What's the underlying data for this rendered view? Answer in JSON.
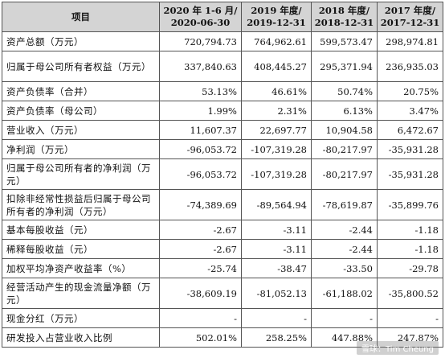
{
  "table": {
    "headers": [
      {
        "line1": "项目",
        "line2": ""
      },
      {
        "line1": "2020 年 1-6 月/",
        "line2": "2020-06-30"
      },
      {
        "line1": "2019 年度/",
        "line2": "2019-12-31"
      },
      {
        "line1": "2018 年度/",
        "line2": "2018-12-31"
      },
      {
        "line1": "2017 年度/",
        "line2": "2017-12-31"
      }
    ],
    "rows": [
      {
        "label": "资产总额（万元）",
        "values": [
          "720,794.73",
          "764,962.61",
          "599,573.47",
          "298,974.81"
        ]
      },
      {
        "label": "归属于母公司所有者权益（万元）",
        "values": [
          "337,840.63",
          "408,445.27",
          "295,371.94",
          "236,935.03"
        ]
      },
      {
        "label": "资产负债率（合并）",
        "values": [
          "53.13%",
          "46.61%",
          "50.74%",
          "20.75%"
        ]
      },
      {
        "label": "资产负债率（母公司）",
        "values": [
          "1.99%",
          "2.31%",
          "6.13%",
          "3.47%"
        ]
      },
      {
        "label": "营业收入（万元）",
        "values": [
          "11,607.37",
          "22,697.77",
          "10,904.58",
          "6,472.67"
        ]
      },
      {
        "label": "净利润（万元）",
        "values": [
          "-96,053.72",
          "-107,319.28",
          "-80,217.97",
          "-35,931.28"
        ]
      },
      {
        "label": "归属于母公司所有者的净利润（万元）",
        "values": [
          "-96,053.72",
          "-107,319.28",
          "-80,217.97",
          "-35,931.28"
        ]
      },
      {
        "label": "扣除非经常性损益后归属于母公司所有者的净利润（万元）",
        "values": [
          "-74,389.69",
          "-89,564.94",
          "-78,619.87",
          "-35,899.76"
        ]
      },
      {
        "label": "基本每股收益（元）",
        "values": [
          "-2.67",
          "-3.11",
          "-2.44",
          "-1.18"
        ]
      },
      {
        "label": "稀释每股收益（元）",
        "values": [
          "-2.67",
          "-3.11",
          "-2.44",
          "-1.18"
        ]
      },
      {
        "label": "加权平均净资产收益率（%）",
        "values": [
          "-25.74",
          "-38.47",
          "-33.50",
          "-29.78"
        ]
      },
      {
        "label": "经营活动产生的现金流量净额（万元）",
        "values": [
          "-38,609.19",
          "-81,052.13",
          "-61,188.02",
          "-35,800.52"
        ]
      },
      {
        "label": "现金分红（万元）",
        "values": [
          "-",
          "-",
          "-",
          "-"
        ]
      },
      {
        "label": "研发投入占营业收入比例",
        "values": [
          "502.01%",
          "258.25%",
          "447.88%",
          "247.87%"
        ]
      }
    ]
  },
  "watermark": {
    "text": "雪球：Tim Cheung",
    "color": "#ffffff"
  },
  "colors": {
    "header_bg": "#d4d4d4",
    "border": "#555555",
    "text": "#111111"
  }
}
